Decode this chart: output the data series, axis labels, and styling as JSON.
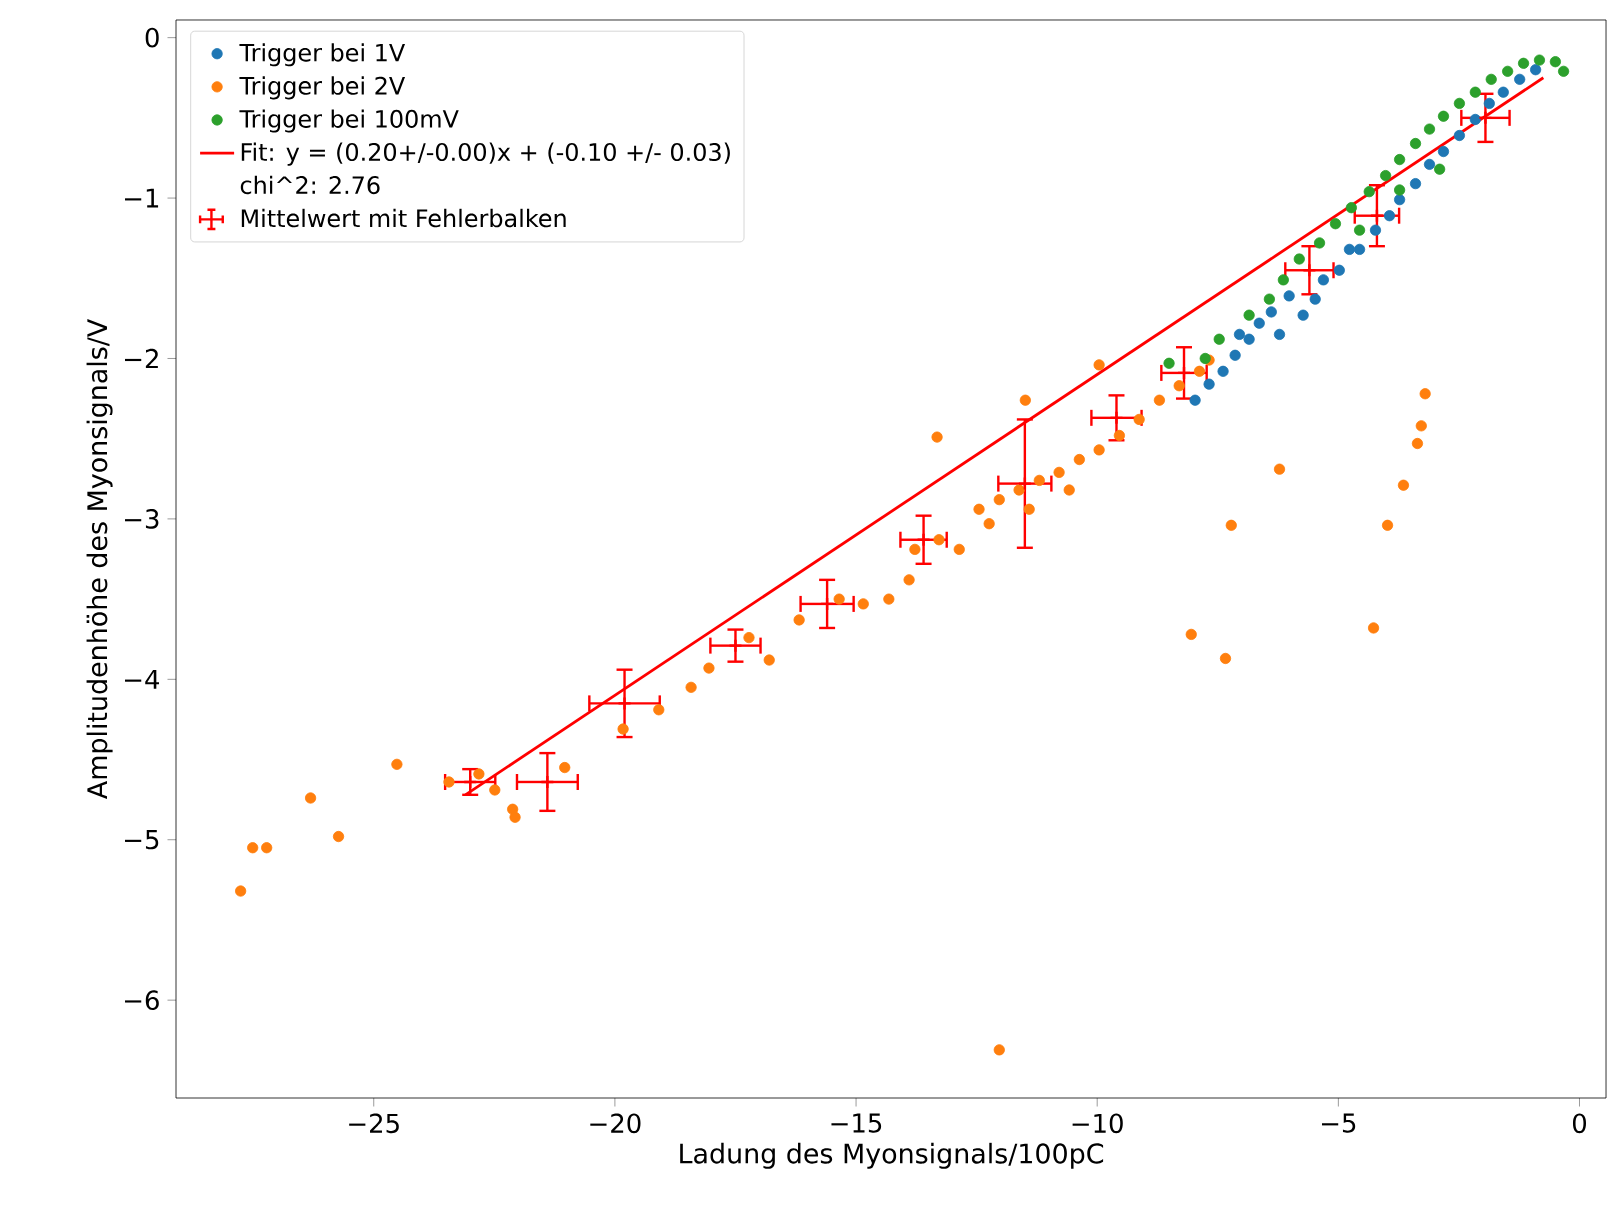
{
  "chart_data": {
    "type": "scatter",
    "xlabel": "Ladung des Myonsignals/100pC",
    "ylabel": "Amplitudenhöhe des Myonsignals/V",
    "xlim": [
      -29.1,
      0.55
    ],
    "ylim": [
      -6.61,
      0.11
    ],
    "xticks": [
      {
        "value": -25,
        "label": "−25"
      },
      {
        "value": -20,
        "label": "−20"
      },
      {
        "value": -15,
        "label": "−15"
      },
      {
        "value": -10,
        "label": "−10"
      },
      {
        "value": -5,
        "label": "−5"
      },
      0
    ],
    "yticks": [
      {
        "value": -6,
        "label": "−6"
      },
      {
        "value": -5,
        "label": "−5"
      },
      {
        "value": -4,
        "label": "−4"
      },
      {
        "value": -3,
        "label": "−3"
      },
      {
        "value": -2,
        "label": "−2"
      },
      {
        "value": -1,
        "label": "−1"
      },
      0
    ],
    "marker": "circle",
    "legend": "top left",
    "grid": false,
    "annotations": [
      "chi^2: 2.76"
    ],
    "series": [
      {
        "name": "Trigger bei 1V",
        "color": "#1f77b4",
        "x": [
          -7.97,
          -7.68,
          -7.39,
          -7.14,
          -6.85,
          -6.64,
          -6.39,
          -6.22,
          -6.02,
          -5.73,
          -5.48,
          -5.31,
          -4.98,
          -4.77,
          -4.56,
          -4.23,
          -3.94,
          -3.73,
          -3.4,
          -3.11,
          -2.82,
          -2.49,
          -2.16,
          -1.87,
          -1.58,
          -1.24,
          -0.91,
          -7.05
        ],
        "values": [
          -2.26,
          -2.16,
          -2.08,
          -1.98,
          -1.88,
          -1.78,
          -1.71,
          -1.85,
          -1.61,
          -1.73,
          -1.63,
          -1.51,
          -1.45,
          -1.32,
          -1.32,
          -1.2,
          -1.11,
          -1.01,
          -0.91,
          -0.79,
          -0.71,
          -0.61,
          -0.51,
          -0.41,
          -0.34,
          -0.26,
          -0.2,
          -1.85
        ]
      },
      {
        "name": "Trigger bei 2V",
        "color": "#ff7f0e",
        "x": [
          -27.76,
          -27.51,
          -27.22,
          -26.31,
          -25.73,
          -24.52,
          -23.44,
          -22.82,
          -22.49,
          -22.12,
          -22.07,
          -21.04,
          -19.83,
          -19.09,
          -18.42,
          -18.05,
          -17.22,
          -16.8,
          -16.18,
          -15.35,
          -14.85,
          -14.32,
          -13.9,
          -13.78,
          -13.28,
          -12.86,
          -12.45,
          -12.03,
          -11.62,
          -11.2,
          -10.79,
          -10.37,
          -9.96,
          -9.54,
          -9.13,
          -8.71,
          -8.3,
          -7.88,
          -7.68,
          -10.58,
          -11.41,
          -12.24,
          -13.32,
          -11.49,
          -9.96,
          -12.03,
          -8.05,
          -7.34,
          -4.27,
          -3.98,
          -3.65,
          -3.36,
          -3.28,
          -3.2,
          -6.22,
          -7.22
        ],
        "values": [
          -5.32,
          -5.05,
          -5.05,
          -4.74,
          -4.98,
          -4.53,
          -4.64,
          -4.59,
          -4.69,
          -4.81,
          -4.86,
          -4.55,
          -4.31,
          -4.19,
          -4.05,
          -3.93,
          -3.74,
          -3.88,
          -3.63,
          -3.5,
          -3.53,
          -3.5,
          -3.38,
          -3.19,
          -3.13,
          -3.19,
          -2.94,
          -2.88,
          -2.82,
          -2.76,
          -2.71,
          -2.63,
          -2.57,
          -2.48,
          -2.38,
          -2.26,
          -2.17,
          -2.08,
          -2.01,
          -2.82,
          -2.94,
          -3.03,
          -2.49,
          -2.26,
          -2.04,
          -6.31,
          -3.72,
          -3.87,
          -3.68,
          -3.04,
          -2.79,
          -2.53,
          -2.42,
          -2.22,
          -2.69,
          -3.04
        ]
      },
      {
        "name": "Trigger bei 100mV",
        "color": "#2ca02c",
        "x": [
          -8.51,
          -7.76,
          -7.47,
          -6.85,
          -6.43,
          -6.14,
          -5.81,
          -5.39,
          -5.06,
          -4.73,
          -4.36,
          -4.02,
          -3.73,
          -3.4,
          -3.11,
          -2.82,
          -2.49,
          -2.16,
          -1.83,
          -1.49,
          -1.16,
          -0.83,
          -0.5,
          -0.33,
          -3.73,
          -2.9,
          -4.56
        ],
        "values": [
          -2.03,
          -2.0,
          -1.88,
          -1.73,
          -1.63,
          -1.51,
          -1.38,
          -1.28,
          -1.16,
          -1.06,
          -0.96,
          -0.86,
          -0.76,
          -0.66,
          -0.57,
          -0.49,
          -0.41,
          -0.34,
          -0.26,
          -0.21,
          -0.16,
          -0.14,
          -0.15,
          -0.21,
          -0.95,
          -0.82,
          -1.2
        ]
      },
      {
        "name": "Fit: y = (0.20+/-0.00)x + (-0.10 +/- 0.03)",
        "type": "line",
        "color": "#ff0000",
        "line_style": "solid",
        "marker": "none",
        "x": [
          -23.1,
          -0.75
        ],
        "values": [
          -4.72,
          -0.25
        ]
      },
      {
        "name": "Mittelwert mit Fehlerbalken",
        "color": "#ff0000",
        "marker": "cross",
        "x": [
          -23.0,
          -21.4,
          -19.8,
          -17.5,
          -15.6,
          -13.6,
          -11.5,
          -9.6,
          -8.2,
          -5.6,
          -4.2,
          -1.95
        ],
        "values": [
          -4.64,
          -4.64,
          -4.15,
          -3.79,
          -3.53,
          -3.13,
          -2.78,
          -2.37,
          -2.09,
          -1.45,
          -1.11,
          -0.5
        ],
        "errors": [
          0.08,
          0.18,
          0.21,
          0.1,
          0.15,
          0.15,
          0.4,
          0.14,
          0.16,
          0.15,
          0.19,
          0.15
        ],
        "xerrors": [
          0.52,
          0.63,
          0.73,
          0.52,
          0.55,
          0.48,
          0.55,
          0.52,
          0.47,
          0.5,
          0.46,
          0.5
        ]
      }
    ]
  }
}
